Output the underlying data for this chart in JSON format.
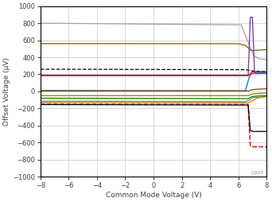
{
  "xlabel": "Common Mode Voltage (V)",
  "ylabel": "Offset Voltage (µV)",
  "xlim": [
    -8,
    8
  ],
  "ylim": [
    -1000,
    1000
  ],
  "xticks": [
    -8,
    -6,
    -4,
    -2,
    0,
    2,
    4,
    6,
    8
  ],
  "yticks": [
    -1000,
    -800,
    -600,
    -400,
    -200,
    0,
    200,
    400,
    600,
    800,
    1000
  ],
  "background_color": "#ffffff",
  "grid_color": "#c8c8c8",
  "watermark": "C005",
  "line_specs": [
    {
      "color": "#a0a0a0",
      "lw": 0.9,
      "style": "-",
      "points_x": [
        -8,
        6.2,
        6.8,
        7.1,
        7.5,
        8.0
      ],
      "points_y": [
        800,
        780,
        530,
        420,
        380,
        370
      ]
    },
    {
      "color": "#806000",
      "lw": 0.9,
      "style": "-",
      "points_x": [
        -8,
        6.0,
        6.5,
        6.9,
        7.2,
        8.0
      ],
      "points_y": [
        560,
        560,
        540,
        480,
        480,
        490
      ]
    },
    {
      "color": "#000000",
      "lw": 0.9,
      "style": "--",
      "points_x": [
        -8,
        6.5,
        7.0,
        8.0
      ],
      "points_y": [
        260,
        255,
        240,
        230
      ]
    },
    {
      "color": "#7030a0",
      "lw": 0.9,
      "style": "-",
      "points_x": [
        -8,
        6.7,
        6.85,
        7.0,
        7.15,
        7.3,
        7.6,
        8.0
      ],
      "points_y": [
        190,
        190,
        870,
        870,
        220,
        210,
        210,
        215
      ]
    },
    {
      "color": "#c00000",
      "lw": 0.9,
      "style": "-",
      "points_x": [
        -8,
        6.7,
        7.0,
        7.3,
        8.0
      ],
      "points_y": [
        185,
        185,
        230,
        230,
        230
      ]
    },
    {
      "color": "#0070c0",
      "lw": 0.9,
      "style": "-",
      "points_x": [
        -8,
        6.5,
        6.8,
        7.0,
        7.3,
        8.0
      ],
      "points_y": [
        10,
        5,
        180,
        210,
        215,
        215
      ]
    },
    {
      "color": "#804000",
      "lw": 0.9,
      "style": "-",
      "points_x": [
        -8,
        6.7,
        7.0,
        7.3,
        8.0
      ],
      "points_y": [
        5,
        5,
        20,
        25,
        30
      ]
    },
    {
      "color": "#808000",
      "lw": 0.9,
      "style": "-",
      "points_x": [
        -8,
        6.7,
        7.0,
        7.3,
        8.0
      ],
      "points_y": [
        -50,
        -50,
        -30,
        -25,
        -20
      ]
    },
    {
      "color": "#008000",
      "lw": 0.9,
      "style": "-",
      "points_x": [
        -8,
        6.7,
        7.0,
        7.3,
        8.0
      ],
      "points_y": [
        -80,
        -85,
        -60,
        -55,
        -50
      ]
    },
    {
      "color": "#808080",
      "lw": 0.9,
      "style": "-",
      "points_x": [
        -8,
        6.5,
        6.8,
        7.0,
        7.5,
        8.0
      ],
      "points_y": [
        -115,
        -120,
        -100,
        -70,
        -70,
        -60
      ]
    },
    {
      "color": "#ff0000",
      "lw": 1.1,
      "style": "--",
      "points_x": [
        -8,
        6.7,
        6.85,
        7.05,
        7.3,
        8.0
      ],
      "points_y": [
        -150,
        -155,
        -640,
        -650,
        -650,
        -650
      ]
    },
    {
      "color": "#000000",
      "lw": 0.9,
      "style": "-",
      "points_x": [
        -8,
        6.7,
        6.85,
        7.05,
        7.4,
        8.0
      ],
      "points_y": [
        -155,
        -160,
        -460,
        -470,
        -470,
        -470
      ]
    },
    {
      "color": "#c08000",
      "lw": 0.9,
      "style": "-",
      "points_x": [
        -8,
        6.7,
        7.0,
        7.3,
        8.0
      ],
      "points_y": [
        -130,
        -135,
        -110,
        -80,
        -60
      ]
    }
  ]
}
